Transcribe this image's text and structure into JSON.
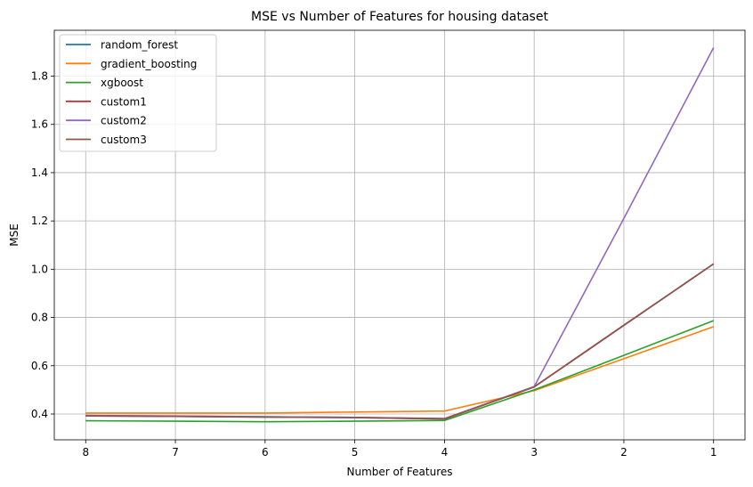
{
  "chart_data": {
    "type": "line",
    "title": "MSE vs Number of Features for housing dataset",
    "xlabel": "Number of Features",
    "ylabel": "MSE",
    "x": [
      8,
      7,
      6,
      5,
      4,
      3,
      2,
      1
    ],
    "x_ticks": [
      "8",
      "7",
      "6",
      "5",
      "4",
      "3",
      "2",
      "1"
    ],
    "x_reversed": true,
    "xlim": [
      8.35,
      0.65
    ],
    "ylim": [
      0.293,
      1.99
    ],
    "y_ticks": [
      "0.4",
      "0.6",
      "0.8",
      "1.0",
      "1.2",
      "1.4",
      "1.6",
      "1.8"
    ],
    "y_tick_values": [
      0.4,
      0.6,
      0.8,
      1.0,
      1.2,
      1.4,
      1.6,
      1.8
    ],
    "grid": true,
    "legend_position": "top-left",
    "series": [
      {
        "name": "random_forest",
        "color": "#1f77b4",
        "values": [
          0.392,
          0.39,
          0.387,
          0.385,
          0.38,
          0.512,
          0.767,
          1.022
        ]
      },
      {
        "name": "gradient_boosting",
        "color": "#ff7f0e",
        "values": [
          0.404,
          0.404,
          0.404,
          0.408,
          0.412,
          0.497,
          0.629,
          0.762
        ]
      },
      {
        "name": "xgboost",
        "color": "#2ca02c",
        "values": [
          0.372,
          0.37,
          0.368,
          0.37,
          0.373,
          0.5,
          0.643,
          0.787
        ]
      },
      {
        "name": "custom1",
        "color": "#d62728",
        "values": [
          0.393,
          0.391,
          0.388,
          0.386,
          0.381,
          0.513,
          0.768,
          1.022
        ]
      },
      {
        "name": "custom2",
        "color": "#9467bd",
        "values": [
          0.394,
          0.392,
          0.389,
          0.386,
          0.38,
          0.514,
          1.21,
          1.918
        ]
      },
      {
        "name": "custom3",
        "color": "#8c564b",
        "values": [
          0.392,
          0.39,
          0.387,
          0.385,
          0.379,
          0.512,
          0.767,
          1.022
        ]
      }
    ]
  }
}
